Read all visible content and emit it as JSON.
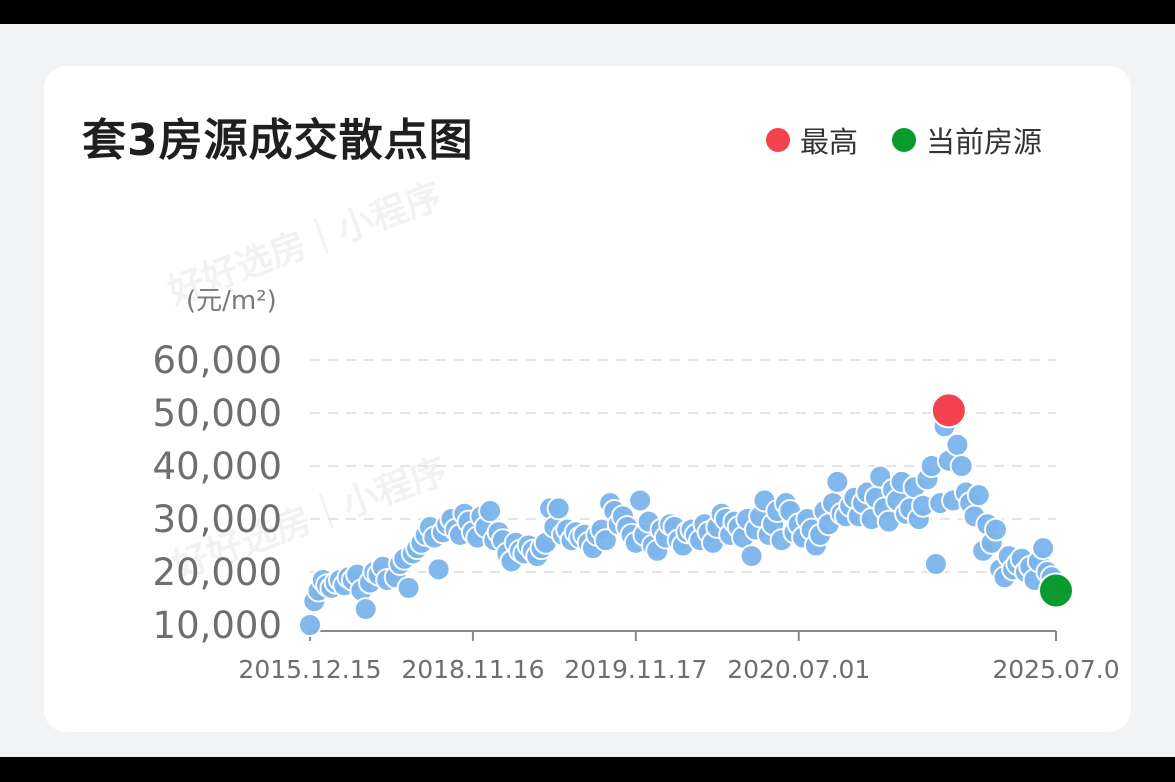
{
  "title": "套3房源成交散点图",
  "legend": [
    {
      "label": "最高",
      "color": "#f2414f"
    },
    {
      "label": "当前房源",
      "color": "#0a9a2e"
    }
  ],
  "unit_label": "(元/m²)",
  "watermark": "好好选房｜小程序",
  "chart_data": {
    "type": "scatter",
    "ylim": [
      10000,
      60000
    ],
    "yticks": [
      "60,000",
      "50,000",
      "40,000",
      "30,000",
      "20,000",
      "10,000"
    ],
    "xticks": [
      "2015.12.15",
      "2018.11.16",
      "2019.11.17",
      "2020.07.01",
      "2025.07.0"
    ],
    "grid": true,
    "legend_position": "top-right",
    "series": [
      {
        "name": "",
        "color": "#7cb5ec",
        "points": [
          [
            0,
            10000
          ],
          [
            0.5,
            14500
          ],
          [
            1,
            16500
          ],
          [
            1.5,
            18500
          ],
          [
            2,
            17500
          ],
          [
            2.5,
            17000
          ],
          [
            3,
            18000
          ],
          [
            3.5,
            18500
          ],
          [
            4,
            17500
          ],
          [
            4.5,
            19000
          ],
          [
            5,
            18500
          ],
          [
            5.5,
            19500
          ],
          [
            6,
            16500
          ],
          [
            6.5,
            13000
          ],
          [
            7,
            18000
          ],
          [
            7.5,
            20000
          ],
          [
            8,
            19500
          ],
          [
            8.5,
            21000
          ],
          [
            9,
            18500
          ],
          [
            10,
            19000
          ],
          [
            10.5,
            21500
          ],
          [
            11,
            22500
          ],
          [
            11.5,
            17000
          ],
          [
            12,
            23500
          ],
          [
            12.5,
            24500
          ],
          [
            13,
            25500
          ],
          [
            13.5,
            27000
          ],
          [
            14,
            28500
          ],
          [
            14.5,
            26500
          ],
          [
            15,
            20500
          ],
          [
            15.5,
            27500
          ],
          [
            16,
            29000
          ],
          [
            16.5,
            30000
          ],
          [
            17,
            28000
          ],
          [
            17.5,
            27000
          ],
          [
            18,
            31000
          ],
          [
            18.5,
            29500
          ],
          [
            19,
            27500
          ],
          [
            19.5,
            26500
          ],
          [
            20,
            30500
          ],
          [
            20.5,
            28500
          ],
          [
            21,
            31500
          ],
          [
            21.5,
            26000
          ],
          [
            22,
            27500
          ],
          [
            22.5,
            26000
          ],
          [
            23,
            23500
          ],
          [
            23.5,
            22000
          ],
          [
            24,
            25500
          ],
          [
            24.5,
            24000
          ],
          [
            25,
            23500
          ],
          [
            25.5,
            25000
          ],
          [
            26,
            24000
          ],
          [
            26.5,
            23000
          ],
          [
            27,
            24500
          ],
          [
            27.5,
            25500
          ],
          [
            28,
            32000
          ],
          [
            28.5,
            28500
          ],
          [
            29,
            32000
          ],
          [
            29.5,
            27000
          ],
          [
            30,
            28000
          ],
          [
            30.5,
            26000
          ],
          [
            31,
            27500
          ],
          [
            31.5,
            26500
          ],
          [
            32,
            27000
          ],
          [
            32.5,
            25500
          ],
          [
            33,
            24500
          ],
          [
            33.5,
            27000
          ],
          [
            34,
            28000
          ],
          [
            34.5,
            26000
          ],
          [
            35,
            33000
          ],
          [
            35.5,
            31500
          ],
          [
            36,
            29000
          ],
          [
            36.5,
            30500
          ],
          [
            37,
            28500
          ],
          [
            37.5,
            27000
          ],
          [
            38,
            25500
          ],
          [
            38.5,
            33500
          ],
          [
            39,
            27000
          ],
          [
            39.5,
            29500
          ],
          [
            40,
            25000
          ],
          [
            40.5,
            24000
          ],
          [
            41,
            28000
          ],
          [
            41.5,
            26500
          ],
          [
            42,
            29000
          ],
          [
            42.5,
            28500
          ],
          [
            43,
            26000
          ],
          [
            43.5,
            25000
          ],
          [
            44,
            27500
          ],
          [
            44.5,
            28000
          ],
          [
            45,
            27000
          ],
          [
            45.5,
            26000
          ],
          [
            46,
            29000
          ],
          [
            46.5,
            27500
          ],
          [
            47,
            25500
          ],
          [
            47.5,
            28500
          ],
          [
            48,
            31000
          ],
          [
            48.5,
            30000
          ],
          [
            49,
            27000
          ],
          [
            49.5,
            29500
          ],
          [
            50,
            28500
          ],
          [
            50.5,
            26500
          ],
          [
            51,
            30000
          ],
          [
            51.5,
            23000
          ],
          [
            52,
            28000
          ],
          [
            52.5,
            30500
          ],
          [
            53,
            33500
          ],
          [
            53.5,
            27000
          ],
          [
            54,
            29000
          ],
          [
            54.5,
            31500
          ],
          [
            55,
            26000
          ],
          [
            55.5,
            33000
          ],
          [
            56,
            31500
          ],
          [
            56.5,
            27500
          ],
          [
            57,
            29000
          ],
          [
            57.5,
            26500
          ],
          [
            58,
            30000
          ],
          [
            58.5,
            28000
          ],
          [
            59,
            25000
          ],
          [
            59.5,
            27000
          ],
          [
            60,
            31500
          ],
          [
            60.5,
            29000
          ],
          [
            61,
            33000
          ],
          [
            61.5,
            37000
          ],
          [
            62,
            31000
          ],
          [
            62.5,
            30500
          ],
          [
            63,
            32500
          ],
          [
            63.5,
            34000
          ],
          [
            64,
            30500
          ],
          [
            64.5,
            33000
          ],
          [
            65,
            35000
          ],
          [
            65.5,
            30000
          ],
          [
            66,
            34000
          ],
          [
            66.5,
            38000
          ],
          [
            67,
            32000
          ],
          [
            67.5,
            29500
          ],
          [
            68,
            35500
          ],
          [
            68.5,
            33500
          ],
          [
            69,
            37000
          ],
          [
            69.5,
            31000
          ],
          [
            70,
            32000
          ],
          [
            70.5,
            36000
          ],
          [
            71,
            30000
          ],
          [
            71.5,
            32500
          ],
          [
            72,
            37500
          ],
          [
            72.5,
            40000
          ],
          [
            73,
            21500
          ],
          [
            73.5,
            33000
          ],
          [
            74,
            47500
          ],
          [
            74.5,
            41000
          ],
          [
            75,
            33500
          ],
          [
            75.5,
            44000
          ],
          [
            76,
            40000
          ],
          [
            76.5,
            35000
          ],
          [
            77,
            33000
          ],
          [
            77.5,
            30500
          ],
          [
            78,
            34500
          ],
          [
            78.5,
            24000
          ],
          [
            79,
            29000
          ],
          [
            79.5,
            25500
          ],
          [
            80,
            28000
          ],
          [
            80.5,
            20500
          ],
          [
            81,
            19000
          ],
          [
            81.5,
            23000
          ],
          [
            82,
            20500
          ],
          [
            82.5,
            21500
          ],
          [
            83,
            22500
          ],
          [
            83.5,
            20000
          ],
          [
            84,
            21000
          ],
          [
            84.5,
            18500
          ],
          [
            85,
            22000
          ],
          [
            85.5,
            24500
          ],
          [
            86,
            20000
          ],
          [
            86.5,
            19000
          ],
          [
            87,
            17500
          ]
        ]
      },
      {
        "name": "最高",
        "color": "#f2414f",
        "points": [
          [
            74.5,
            50500
          ]
        ]
      },
      {
        "name": "当前房源",
        "color": "#0a9a2e",
        "points": [
          [
            87,
            16500
          ]
        ]
      }
    ]
  }
}
